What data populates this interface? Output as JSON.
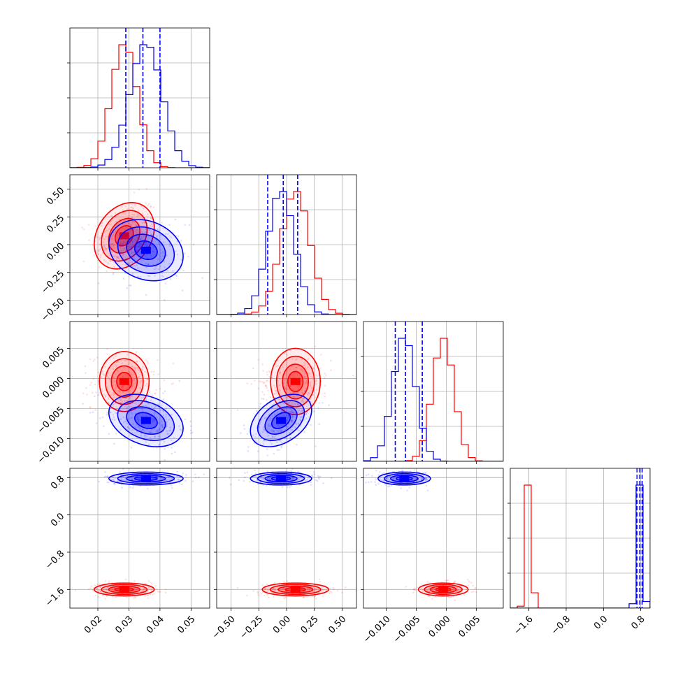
{
  "chart_data": {
    "type": "corner",
    "parameters": [
      {
        "ticks": [
          0.02,
          0.03,
          0.04,
          0.05
        ],
        "tick_labels": [
          "0.02",
          "0.03",
          "0.04",
          "0.05"
        ],
        "range": [
          0.011,
          0.056
        ]
      },
      {
        "ticks": [
          -0.5,
          -0.25,
          0.0,
          0.25,
          0.5
        ],
        "tick_labels": [
          "−0.50",
          "−0.25",
          "0.00",
          "0.25",
          "0.50"
        ],
        "range": [
          -0.63,
          0.63
        ]
      },
      {
        "ticks": [
          -0.01,
          -0.005,
          0.0,
          0.005
        ],
        "tick_labels": [
          "−0.010",
          "−0.005",
          "0.000",
          "0.005"
        ],
        "range": [
          -0.0138,
          0.0095
        ]
      },
      {
        "ticks": [
          -1.6,
          -0.8,
          0.0,
          0.8
        ],
        "tick_labels": [
          "−1.6",
          "−0.8",
          "0.0",
          "0.8"
        ],
        "range": [
          -2.0,
          1.0
        ]
      }
    ],
    "series": [
      {
        "color": "#ff0000",
        "mean": [
          0.0285,
          0.08,
          -0.0005,
          -1.6
        ],
        "sigma": [
          0.0042,
          0.13,
          0.0018,
          0.06
        ],
        "corr": [
          [
            0,
            1,
            0.25
          ]
        ],
        "hist_tops": [
          0.05,
          0.06,
          0.02,
          0.78
        ]
      },
      {
        "color": "#0000ff",
        "mean": [
          0.0355,
          -0.05,
          -0.007,
          0.78
        ],
        "sigma": [
          0.0052,
          0.12,
          0.0019,
          0.06
        ],
        "corr": [
          [
            0,
            1,
            -0.2
          ],
          [
            0,
            2,
            -0.3
          ],
          [
            1,
            2,
            0.4
          ]
        ],
        "hist_tops": [
          0.05,
          0.06,
          0.02,
          0.6
        ],
        "quantiles": [
          [
            0.029,
            0.0345,
            0.04
          ],
          [
            -0.17,
            -0.03,
            0.1
          ],
          [
            -0.0085,
            -0.0068,
            -0.004
          ],
          [
            0.72,
            0.78,
            0.83
          ]
        ]
      }
    ],
    "grid": true,
    "legend": "none"
  }
}
